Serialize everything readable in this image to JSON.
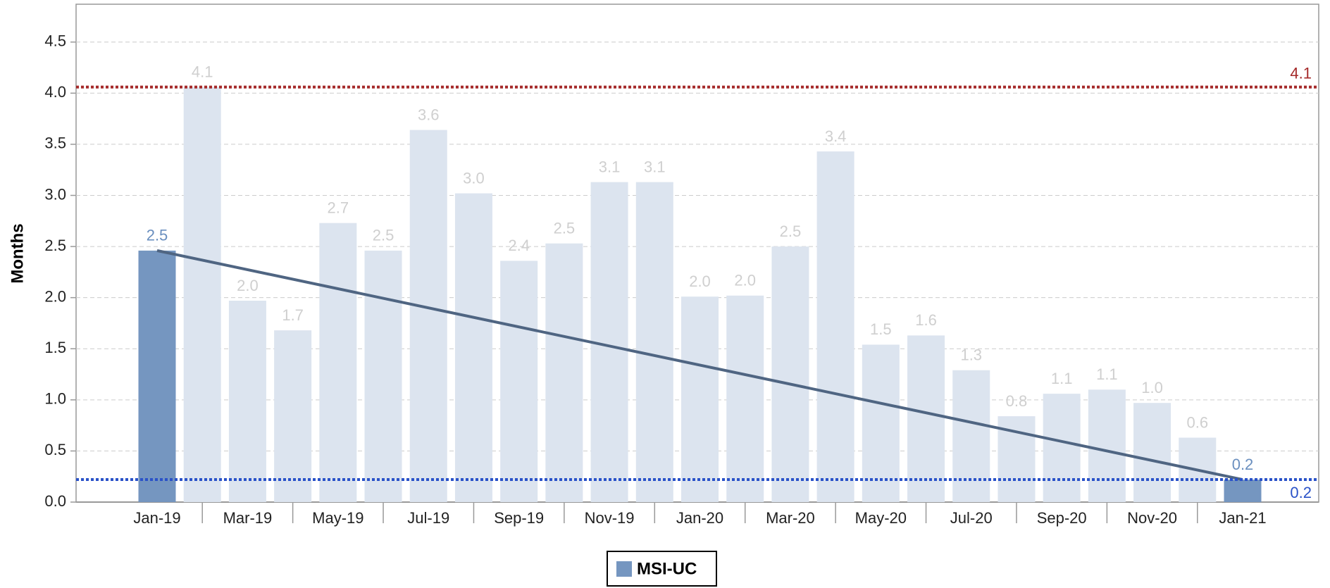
{
  "chart_data": {
    "type": "bar",
    "y_label": "Months",
    "categories": [
      "Jan-19",
      null,
      "Mar-19",
      null,
      "May-19",
      null,
      "Jul-19",
      null,
      "Sep-19",
      null,
      "Nov-19",
      null,
      "Jan-20",
      null,
      "Mar-20",
      null,
      "May-20",
      null,
      "Jul-20",
      null,
      "Sep-20",
      null,
      "Nov-20",
      null,
      "Jan-21"
    ],
    "series": [
      {
        "name": "MSI-UC",
        "color": "#7596c0",
        "colors": [
          "#7596c0",
          "#dce4ef",
          "#dce4ef",
          "#dce4ef",
          "#dce4ef",
          "#dce4ef",
          "#dce4ef",
          "#dce4ef",
          "#dce4ef",
          "#dce4ef",
          "#dce4ef",
          "#dce4ef",
          "#dce4ef",
          "#dce4ef",
          "#dce4ef",
          "#dce4ef",
          "#dce4ef",
          "#dce4ef",
          "#dce4ef",
          "#dce4ef",
          "#dce4ef",
          "#dce4ef",
          "#dce4ef",
          "#dce4ef",
          "#7596c0"
        ],
        "values": [
          2.46,
          4.06,
          1.97,
          1.68,
          2.73,
          2.46,
          3.64,
          3.02,
          2.36,
          2.53,
          3.13,
          3.13,
          2.01,
          2.02,
          2.5,
          3.43,
          1.54,
          1.63,
          1.29,
          0.84,
          1.06,
          1.1,
          0.97,
          0.63,
          0.22
        ],
        "value_labels": [
          "2.5",
          "4.1",
          "2.0",
          "1.7",
          "2.7",
          "2.5",
          "3.6",
          "3.0",
          "2.4",
          "2.5",
          "3.1",
          "3.1",
          "2.0",
          "2.0",
          "2.5",
          "3.4",
          "1.5",
          "1.6",
          "1.3",
          "0.8",
          "1.1",
          "1.1",
          "1.0",
          "0.6",
          "0.2"
        ]
      }
    ],
    "trendline": {
      "start": 2.46,
      "end": 0.22,
      "color": "#4f6582"
    },
    "reference_lines": [
      {
        "value": 4.06,
        "label": "4.1",
        "color": "#a52a2a"
      },
      {
        "value": 0.22,
        "label": "0.2",
        "color": "#2a52c8"
      }
    ],
    "ylim": [
      0,
      4.87
    ],
    "yticks": [
      {
        "value": 0,
        "label": "0.0"
      },
      0.5,
      {
        "value": 1,
        "label": "1.0"
      },
      1.5,
      {
        "value": 2,
        "label": "2.0"
      },
      2.5,
      {
        "value": 3,
        "label": "3.0"
      },
      3.5,
      {
        "value": 4,
        "label": "4.0"
      },
      4.5
    ],
    "grid": true
  }
}
